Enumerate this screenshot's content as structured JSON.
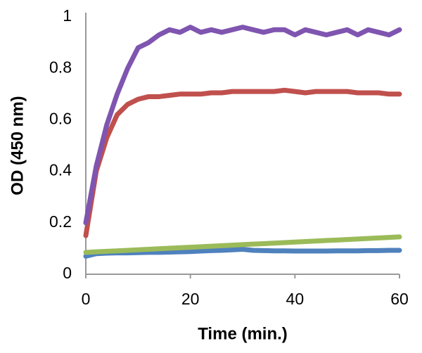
{
  "chart_data": {
    "type": "line",
    "xlabel": "Time (min.)",
    "ylabel": "OD (450 nm)",
    "x": [
      0,
      2,
      4,
      6,
      8,
      10,
      12,
      14,
      16,
      18,
      20,
      22,
      24,
      26,
      28,
      30,
      32,
      34,
      36,
      38,
      40,
      42,
      44,
      46,
      48,
      50,
      52,
      54,
      56,
      58,
      60
    ],
    "series": [
      {
        "color": "#7f55b0",
        "values": [
          0.2,
          0.42,
          0.58,
          0.7,
          0.8,
          0.88,
          0.9,
          0.93,
          0.95,
          0.94,
          0.96,
          0.94,
          0.95,
          0.94,
          0.95,
          0.96,
          0.95,
          0.94,
          0.95,
          0.95,
          0.93,
          0.95,
          0.94,
          0.93,
          0.94,
          0.95,
          0.93,
          0.95,
          0.94,
          0.93,
          0.95
        ]
      },
      {
        "color": "#c0504d",
        "values": [
          0.15,
          0.4,
          0.53,
          0.62,
          0.66,
          0.68,
          0.69,
          0.69,
          0.695,
          0.7,
          0.7,
          0.7,
          0.705,
          0.705,
          0.71,
          0.71,
          0.71,
          0.71,
          0.71,
          0.715,
          0.71,
          0.705,
          0.71,
          0.71,
          0.71,
          0.71,
          0.705,
          0.705,
          0.705,
          0.7,
          0.7
        ]
      },
      {
        "color": "#9bbb59",
        "values": [
          0.085,
          0.087,
          0.089,
          0.091,
          0.093,
          0.095,
          0.097,
          0.099,
          0.101,
          0.103,
          0.105,
          0.107,
          0.109,
          0.111,
          0.113,
          0.115,
          0.117,
          0.119,
          0.121,
          0.123,
          0.125,
          0.127,
          0.129,
          0.131,
          0.133,
          0.135,
          0.137,
          0.139,
          0.141,
          0.143,
          0.145
        ]
      },
      {
        "color": "#4f81bd",
        "values": [
          0.07,
          0.08,
          0.082,
          0.083,
          0.083,
          0.084,
          0.085,
          0.085,
          0.086,
          0.087,
          0.088,
          0.09,
          0.092,
          0.093,
          0.095,
          0.097,
          0.093,
          0.092,
          0.091,
          0.091,
          0.09,
          0.09,
          0.09,
          0.09,
          0.091,
          0.091,
          0.091,
          0.092,
          0.092,
          0.093,
          0.093
        ]
      }
    ],
    "xlim": [
      0,
      60
    ],
    "xticks": [
      0,
      20,
      40,
      60
    ],
    "ylim": [
      0,
      1
    ],
    "yticks": [
      0,
      0.2,
      0.4,
      0.6,
      0.8,
      1
    ]
  }
}
